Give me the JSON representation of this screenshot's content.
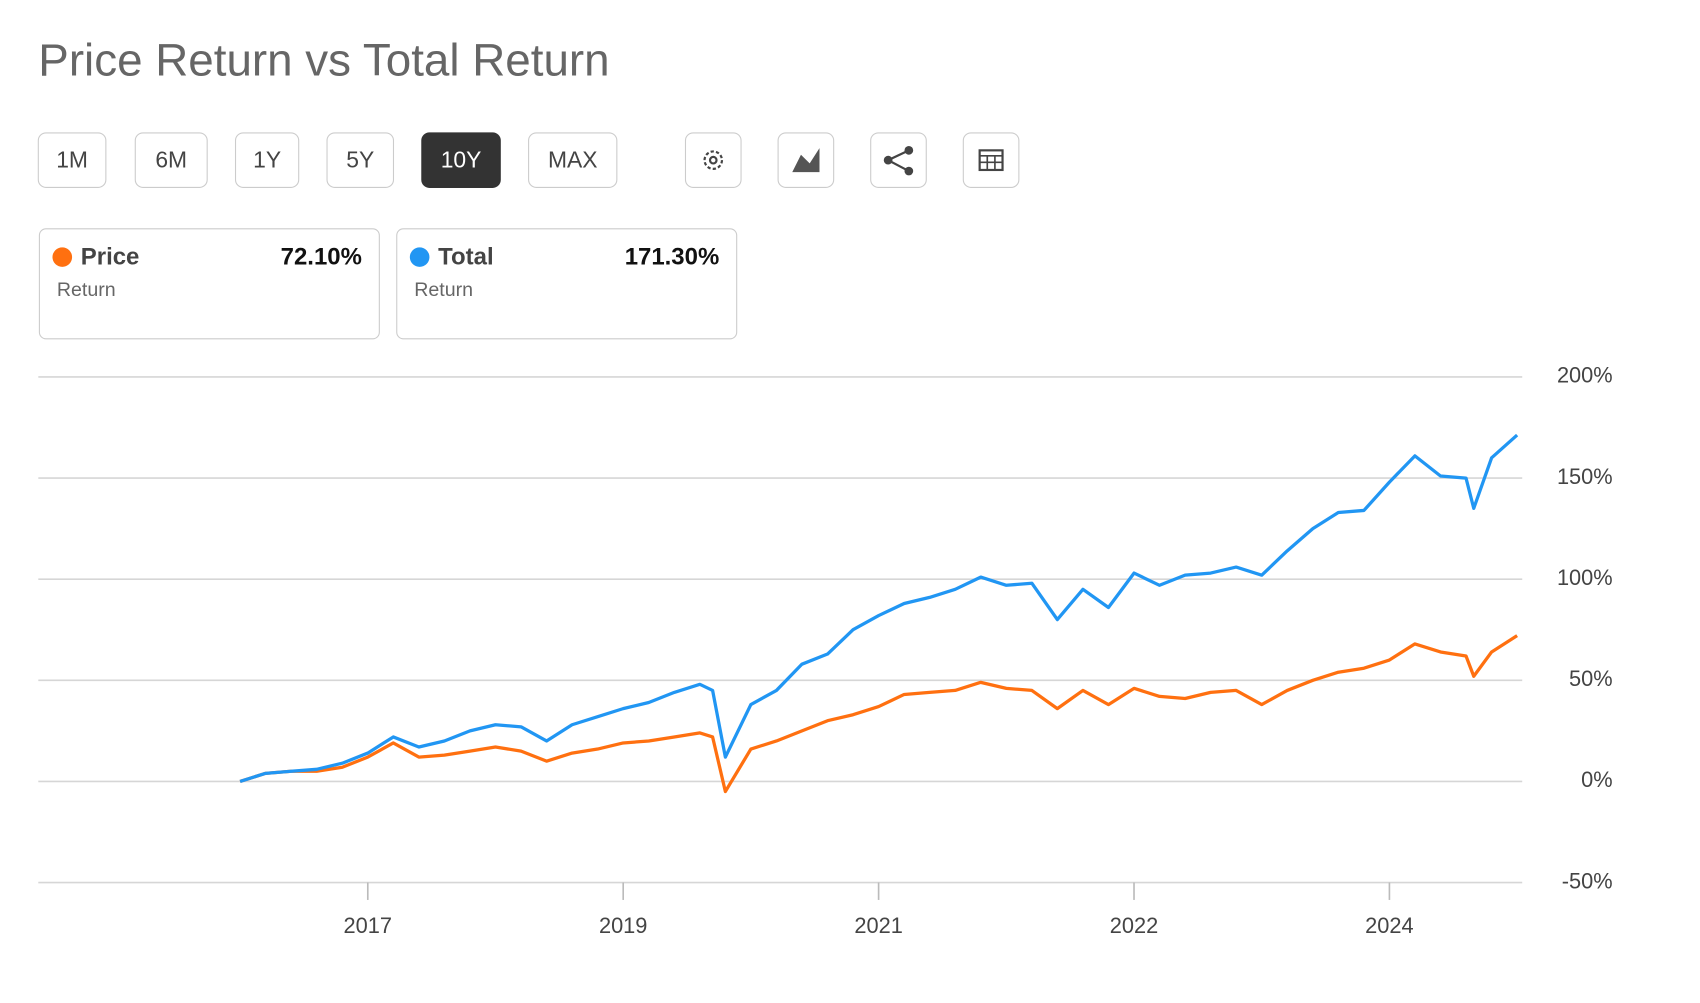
{
  "chart_data": {
    "type": "line",
    "title": "Price Return vs Total Return",
    "range_buttons": [
      "1M",
      "6M",
      "1Y",
      "5Y",
      "10Y",
      "MAX"
    ],
    "active_range": "10Y",
    "legend_sublabel": "Return",
    "x": [
      5,
      6,
      7,
      8,
      9,
      10,
      11,
      12,
      13,
      14,
      15,
      16,
      17,
      18,
      19,
      20,
      21,
      22,
      23,
      23.5,
      24,
      25,
      26,
      27,
      28,
      29,
      30,
      31,
      32,
      33,
      34,
      35,
      36,
      37,
      38,
      39,
      40,
      41,
      42,
      43,
      44,
      45,
      46,
      47,
      48,
      49,
      50,
      51,
      52,
      53,
      53.3,
      54,
      55
    ],
    "xlim": [
      -2.9,
      55.2
    ],
    "xticks": [
      {
        "value": 10,
        "label": "2017"
      },
      {
        "value": 20,
        "label": "2019"
      },
      {
        "value": 30,
        "label": "2021"
      },
      {
        "value": 40,
        "label": "2022"
      },
      {
        "value": 50,
        "label": "2024"
      }
    ],
    "ylim": [
      -50,
      200
    ],
    "yticks": [
      {
        "value": 200,
        "label": "200%"
      },
      {
        "value": 150,
        "label": "150%"
      },
      {
        "value": 100,
        "label": "100%"
      },
      {
        "value": 50,
        "label": "50%"
      },
      {
        "value": 0,
        "label": "0%"
      },
      {
        "value": -50,
        "label": "-50%"
      }
    ],
    "grid": true,
    "series": [
      {
        "name": "Price",
        "color": "#ff7010",
        "summary_value": 72.1,
        "summary_label": "72.10%",
        "values": [
          0,
          4,
          5,
          5,
          7,
          12,
          19,
          12,
          13,
          15,
          17,
          15,
          10,
          14,
          16,
          19,
          20,
          22,
          24,
          22,
          -5,
          16,
          20,
          25,
          30,
          33,
          37,
          43,
          44,
          45,
          49,
          46,
          45,
          36,
          45,
          38,
          46,
          42,
          41,
          44,
          45,
          38,
          45,
          50,
          54,
          56,
          60,
          68,
          64,
          62,
          52,
          64,
          72.1
        ]
      },
      {
        "name": "Total",
        "color": "#2196f3",
        "summary_value": 171.3,
        "summary_label": "171.30%",
        "values": [
          0,
          4,
          5,
          6,
          9,
          14,
          22,
          17,
          20,
          25,
          28,
          27,
          20,
          28,
          32,
          36,
          39,
          44,
          48,
          45,
          12,
          38,
          45,
          58,
          63,
          75,
          82,
          88,
          91,
          95,
          101,
          97,
          98,
          80,
          95,
          86,
          103,
          97,
          102,
          103,
          106,
          102,
          114,
          125,
          133,
          134,
          148,
          161,
          151,
          150,
          135,
          160,
          171.3
        ]
      }
    ]
  }
}
